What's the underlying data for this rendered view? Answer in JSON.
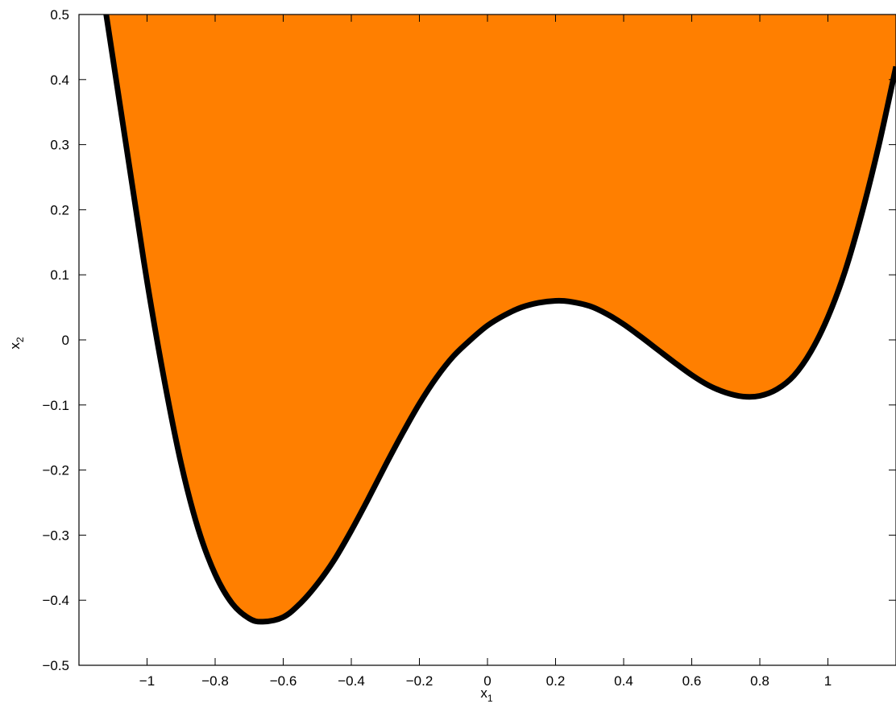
{
  "chart_data": {
    "type": "area",
    "title": "",
    "xlabel": "x",
    "xlabel_sub": "1",
    "ylabel": "x",
    "ylabel_sub": "2",
    "xlim": [
      -1.2,
      1.2
    ],
    "ylim": [
      -0.5,
      0.5
    ],
    "xticks": [
      -1,
      -0.8,
      -0.6,
      -0.4,
      -0.2,
      0,
      0.2,
      0.4,
      0.6,
      0.8,
      1
    ],
    "xtick_labels": [
      "−1",
      "−0.8",
      "−0.6",
      "−0.4",
      "−0.2",
      "0",
      "0.2",
      "0.4",
      "0.6",
      "0.8",
      "1"
    ],
    "yticks": [
      -0.5,
      -0.4,
      -0.3,
      -0.2,
      -0.1,
      0,
      0.1,
      0.2,
      0.3,
      0.4,
      0.5
    ],
    "ytick_labels": [
      "−0.5",
      "−0.4",
      "−0.3",
      "−0.2",
      "−0.1",
      "0",
      "0.1",
      "0.2",
      "0.3",
      "0.4",
      "0.5"
    ],
    "grid": false,
    "fill_color": "#ff7f00",
    "curve_color": "#000000",
    "region": "above curve",
    "curve": {
      "x": [
        -1.12,
        -1.05,
        -1.0,
        -0.95,
        -0.9,
        -0.85,
        -0.8,
        -0.75,
        -0.7,
        -0.66,
        -0.6,
        -0.55,
        -0.5,
        -0.45,
        -0.4,
        -0.35,
        -0.3,
        -0.25,
        -0.2,
        -0.15,
        -0.1,
        -0.05,
        0.0,
        0.05,
        0.1,
        0.15,
        0.2,
        0.24,
        0.3,
        0.35,
        0.4,
        0.45,
        0.5,
        0.55,
        0.6,
        0.65,
        0.7,
        0.75,
        0.8,
        0.85,
        0.9,
        0.95,
        1.0,
        1.05,
        1.1,
        1.15,
        1.2
      ],
      "y": [
        0.5,
        0.26,
        0.09,
        -0.06,
        -0.19,
        -0.29,
        -0.36,
        -0.405,
        -0.428,
        -0.433,
        -0.426,
        -0.405,
        -0.375,
        -0.338,
        -0.293,
        -0.244,
        -0.193,
        -0.144,
        -0.098,
        -0.058,
        -0.025,
        0.0,
        0.022,
        0.038,
        0.05,
        0.057,
        0.06,
        0.059,
        0.052,
        0.04,
        0.024,
        0.005,
        -0.015,
        -0.035,
        -0.054,
        -0.07,
        -0.081,
        -0.087,
        -0.086,
        -0.076,
        -0.055,
        -0.018,
        0.035,
        0.105,
        0.195,
        0.3,
        0.42
      ]
    }
  }
}
